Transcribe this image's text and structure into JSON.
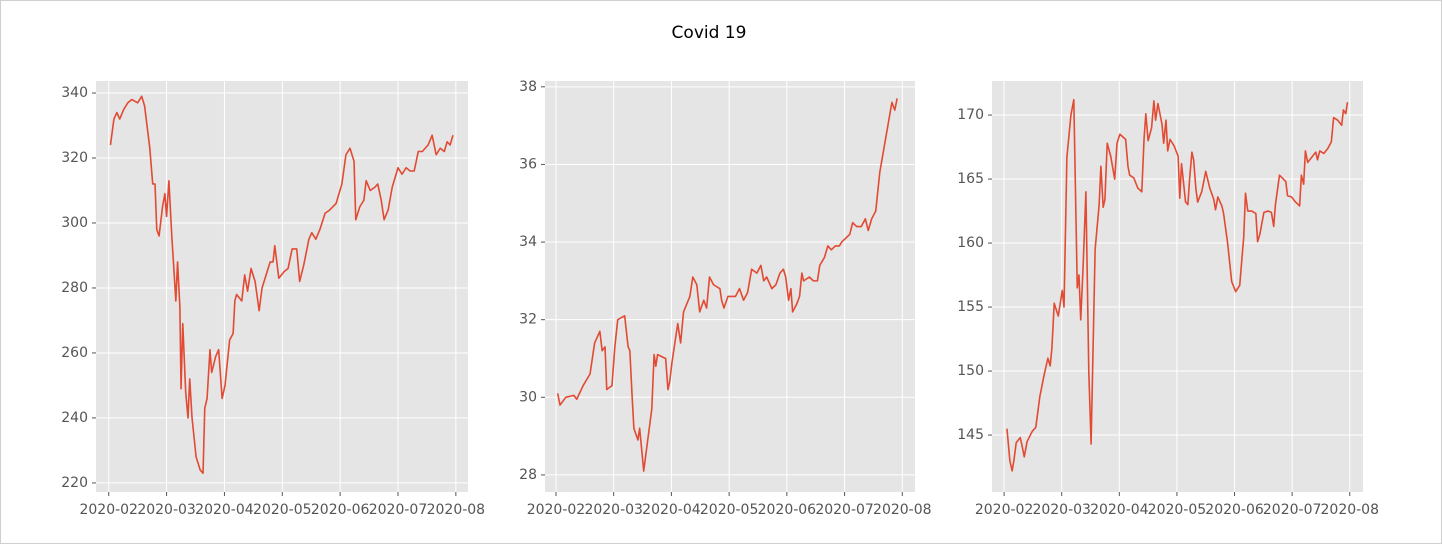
{
  "title": "Covid 19",
  "chart_data": [
    {
      "type": "line",
      "color": "#e24a33",
      "grid": true,
      "x": [
        2.03,
        2.09,
        2.14,
        2.19,
        2.26,
        2.33,
        2.4,
        2.5,
        2.57,
        2.62,
        2.71,
        2.76,
        2.8,
        2.83,
        2.87,
        2.93,
        2.97,
        3.0,
        3.04,
        3.09,
        3.16,
        3.19,
        3.23,
        3.25,
        3.28,
        3.33,
        3.37,
        3.4,
        3.44,
        3.51,
        3.58,
        3.63,
        3.66,
        3.7,
        3.75,
        3.78,
        3.85,
        3.9,
        3.96,
        4.01,
        4.09,
        4.15,
        4.18,
        4.21,
        4.3,
        4.35,
        4.4,
        4.46,
        4.53,
        4.6,
        4.65,
        4.72,
        4.79,
        4.84,
        4.87,
        4.94,
        5.03,
        5.1,
        5.17,
        5.25,
        5.3,
        5.37,
        5.46,
        5.51,
        5.58,
        5.65,
        5.74,
        5.82,
        5.93,
        6.03,
        6.1,
        6.17,
        6.24,
        6.27,
        6.34,
        6.41,
        6.45,
        6.52,
        6.6,
        6.65,
        6.71,
        6.76,
        6.83,
        6.9,
        7.0,
        7.07,
        7.14,
        7.21,
        7.28,
        7.35,
        7.42,
        7.52,
        7.59,
        7.66,
        7.73,
        7.8,
        7.85,
        7.9,
        7.95
      ],
      "values": [
        324,
        332,
        334,
        332,
        335,
        337,
        338,
        337,
        339,
        336,
        323,
        312,
        312,
        298,
        296,
        305,
        309,
        302,
        313,
        296,
        276,
        288,
        274,
        249,
        269,
        248,
        240,
        252,
        240,
        228,
        224,
        223,
        243,
        246,
        261,
        254,
        259,
        261,
        246,
        250,
        264,
        266,
        276,
        278,
        276,
        284,
        279,
        286,
        282,
        273,
        280,
        284,
        288,
        288,
        293,
        283,
        285,
        286,
        292,
        292,
        282,
        287,
        295,
        297,
        295,
        298,
        303,
        304,
        306,
        312,
        321,
        323,
        319,
        301,
        305,
        307,
        313,
        310,
        311,
        312,
        307,
        301,
        304,
        311,
        317,
        315,
        317,
        316,
        316,
        322,
        322,
        324,
        327,
        321,
        323,
        322,
        325,
        324,
        327
      ],
      "xlim": [
        1.78,
        8.21
      ],
      "ylim": [
        217.2,
        343.7
      ],
      "xticks": [
        {
          "value": 2,
          "label": "2020-02"
        },
        {
          "value": 3,
          "label": "2020-03"
        },
        {
          "value": 4,
          "label": "2020-04"
        },
        {
          "value": 5,
          "label": "2020-05"
        },
        {
          "value": 6,
          "label": "2020-06"
        },
        {
          "value": 7,
          "label": "2020-07"
        },
        {
          "value": 8,
          "label": "2020-08"
        }
      ],
      "yticks": [
        220,
        240,
        260,
        280,
        300,
        320,
        340
      ]
    },
    {
      "type": "line",
      "color": "#e24a33",
      "grid": true,
      "x": [
        2.03,
        2.07,
        2.17,
        2.31,
        2.36,
        2.47,
        2.59,
        2.67,
        2.76,
        2.8,
        2.85,
        2.88,
        2.97,
        3.02,
        3.07,
        3.19,
        3.25,
        3.28,
        3.32,
        3.35,
        3.42,
        3.45,
        3.52,
        3.66,
        3.7,
        3.73,
        3.76,
        3.9,
        3.94,
        3.97,
        4.01,
        4.11,
        4.16,
        4.21,
        4.32,
        4.37,
        4.44,
        4.49,
        4.56,
        4.61,
        4.66,
        4.73,
        4.84,
        4.87,
        4.91,
        4.98,
        5.11,
        5.18,
        5.25,
        5.32,
        5.39,
        5.48,
        5.55,
        5.6,
        5.65,
        5.74,
        5.81,
        5.88,
        5.94,
        5.98,
        6.03,
        6.07,
        6.1,
        6.17,
        6.22,
        6.26,
        6.29,
        6.39,
        6.46,
        6.53,
        6.57,
        6.65,
        6.71,
        6.77,
        6.84,
        6.91,
        6.95,
        7.02,
        7.09,
        7.14,
        7.21,
        7.29,
        7.36,
        7.41,
        7.47,
        7.54,
        7.61,
        7.68,
        7.75,
        7.82,
        7.87,
        7.91
      ],
      "values": [
        30.1,
        29.8,
        30.0,
        30.05,
        29.95,
        30.3,
        30.6,
        31.4,
        31.7,
        31.2,
        31.3,
        30.2,
        30.3,
        31.3,
        32.0,
        32.1,
        31.3,
        31.2,
        30.0,
        29.2,
        28.9,
        29.2,
        28.1,
        29.7,
        31.1,
        30.8,
        31.1,
        31.0,
        30.2,
        30.4,
        30.9,
        31.9,
        31.4,
        32.2,
        32.6,
        33.1,
        32.9,
        32.2,
        32.5,
        32.3,
        33.1,
        32.9,
        32.8,
        32.5,
        32.3,
        32.6,
        32.6,
        32.8,
        32.5,
        32.7,
        33.3,
        33.2,
        33.4,
        33.0,
        33.1,
        32.8,
        32.9,
        33.2,
        33.3,
        33.1,
        32.5,
        32.8,
        32.2,
        32.4,
        32.6,
        33.2,
        33.0,
        33.1,
        33.0,
        33.0,
        33.4,
        33.6,
        33.9,
        33.8,
        33.9,
        33.9,
        34.0,
        34.1,
        34.2,
        34.5,
        34.4,
        34.4,
        34.6,
        34.3,
        34.6,
        34.8,
        35.8,
        36.4,
        37.0,
        37.6,
        37.4,
        37.7
      ],
      "xlim": [
        1.81,
        8.22
      ],
      "ylim": [
        27.56,
        38.15
      ],
      "xticks": [
        {
          "value": 2,
          "label": "2020-02"
        },
        {
          "value": 3,
          "label": "2020-03"
        },
        {
          "value": 4,
          "label": "2020-04"
        },
        {
          "value": 5,
          "label": "2020-05"
        },
        {
          "value": 6,
          "label": "2020-06"
        },
        {
          "value": 7,
          "label": "2020-07"
        },
        {
          "value": 8,
          "label": "2020-08"
        }
      ],
      "yticks": [
        28,
        30,
        32,
        34,
        36,
        38
      ]
    },
    {
      "type": "line",
      "color": "#e24a33",
      "grid": true,
      "x": [
        2.05,
        2.1,
        2.14,
        2.17,
        2.21,
        2.28,
        2.31,
        2.35,
        2.4,
        2.49,
        2.55,
        2.62,
        2.69,
        2.76,
        2.8,
        2.83,
        2.87,
        2.94,
        3.01,
        3.04,
        3.09,
        3.16,
        3.21,
        3.27,
        3.3,
        3.33,
        3.37,
        3.42,
        3.47,
        3.51,
        3.58,
        3.65,
        3.68,
        3.72,
        3.75,
        3.79,
        3.85,
        3.92,
        3.96,
        4.01,
        4.11,
        4.15,
        4.18,
        4.25,
        4.32,
        4.39,
        4.43,
        4.46,
        4.5,
        4.56,
        4.6,
        4.63,
        4.67,
        4.74,
        4.77,
        4.81,
        4.84,
        4.88,
        4.95,
        5.02,
        5.05,
        5.08,
        5.15,
        5.19,
        5.22,
        5.26,
        5.29,
        5.33,
        5.36,
        5.43,
        5.5,
        5.57,
        5.64,
        5.67,
        5.71,
        5.78,
        5.81,
        5.88,
        5.95,
        6.02,
        6.09,
        6.16,
        6.19,
        6.23,
        6.3,
        6.37,
        6.4,
        6.44,
        6.51,
        6.58,
        6.64,
        6.68,
        6.71,
        6.78,
        6.89,
        6.92,
        6.99,
        7.06,
        7.13,
        7.16,
        7.2,
        7.23,
        7.27,
        7.34,
        7.41,
        7.44,
        7.48,
        7.55,
        7.62,
        7.68,
        7.72,
        7.79,
        7.86,
        7.89,
        7.93,
        7.96
      ],
      "values": [
        145.5,
        143,
        142.2,
        143,
        144.4,
        144.8,
        144.2,
        143.3,
        144.5,
        145.3,
        145.6,
        148,
        149.6,
        151,
        150.4,
        151.8,
        155.3,
        154.3,
        156.3,
        155,
        166.7,
        170,
        171.2,
        156.5,
        157.5,
        154,
        158,
        164,
        150,
        144.3,
        159.5,
        163,
        166,
        162.8,
        163.4,
        167.8,
        166.8,
        165,
        167.8,
        168.5,
        168.1,
        166,
        165.3,
        165.1,
        164.3,
        164,
        168.2,
        170.1,
        168,
        169,
        171.1,
        169.6,
        170.9,
        169.3,
        167.8,
        169.6,
        167.2,
        168.1,
        167.6,
        166.8,
        163.5,
        166.2,
        163.2,
        163,
        165,
        167.1,
        166.5,
        164.2,
        163.2,
        164,
        165.6,
        164.3,
        163.4,
        162.6,
        163.6,
        162.9,
        162.3,
        160,
        157,
        156.2,
        156.7,
        160.5,
        163.9,
        162.5,
        162.5,
        162.3,
        160.1,
        160.7,
        162.4,
        162.5,
        162.4,
        161.3,
        163,
        165.3,
        164.8,
        163.7,
        163.6,
        163.2,
        162.9,
        165.3,
        164.6,
        167.2,
        166.3,
        166.7,
        167.1,
        166.5,
        167.2,
        167,
        167.4,
        167.9,
        169.8,
        169.6,
        169.2,
        170.4,
        170.1,
        171
      ],
      "xlim": [
        1.79,
        8.23
      ],
      "ylim": [
        140.55,
        172.66
      ],
      "xticks": [
        {
          "value": 2,
          "label": "2020-02"
        },
        {
          "value": 3,
          "label": "2020-03"
        },
        {
          "value": 4,
          "label": "2020-04"
        },
        {
          "value": 5,
          "label": "2020-05"
        },
        {
          "value": 6,
          "label": "2020-06"
        },
        {
          "value": 7,
          "label": "2020-07"
        },
        {
          "value": 8,
          "label": "2020-08"
        }
      ],
      "yticks": [
        145,
        150,
        155,
        160,
        165,
        170
      ]
    }
  ]
}
